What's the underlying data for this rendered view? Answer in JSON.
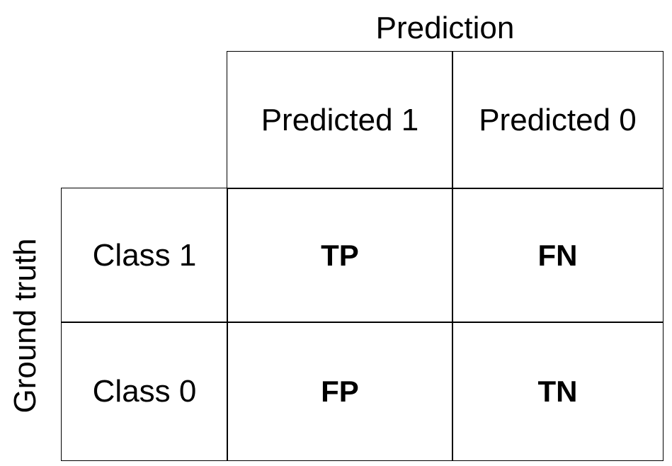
{
  "diagram": {
    "column_axis_title": "Prediction",
    "row_axis_title": "Ground truth",
    "column_headers": [
      "Predicted 1",
      "Predicted 0"
    ],
    "row_headers": [
      "Class 1",
      "Class 0"
    ],
    "cells": [
      [
        "TP",
        "FN"
      ],
      [
        "FP",
        "TN"
      ]
    ]
  }
}
